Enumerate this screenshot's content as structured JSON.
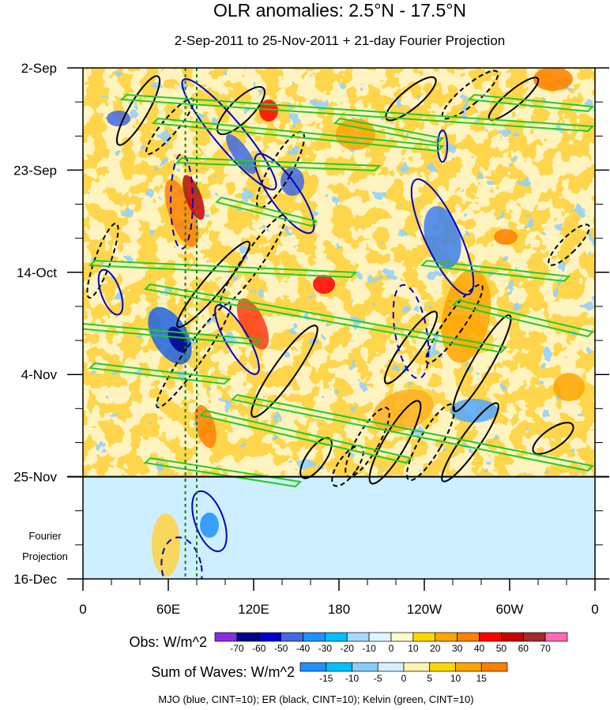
{
  "chart_data": {
    "type": "heatmap",
    "title": "OLR anomalies: 2.5°N - 17.5°N",
    "subtitle": "2-Sep-2011 to 25-Nov-2011 + 21-day Fourier Projection",
    "x_tick_labels": [
      "0",
      "60E",
      "120E",
      "180",
      "120W",
      "60W",
      "0"
    ],
    "x_tick_lons": [
      0,
      60,
      120,
      180,
      240,
      300,
      360
    ],
    "y_tick_labels": [
      "2-Sep",
      "23-Sep",
      "14-Oct",
      "4-Nov",
      "25-Nov",
      "16-Dec"
    ],
    "y_tick_days": [
      0,
      21,
      42,
      63,
      84,
      105
    ],
    "projection_label": [
      "Fourier",
      "Projection"
    ],
    "projection_start_day": 84,
    "marker_lines_lon": [
      72,
      80
    ],
    "obs_colorbar": {
      "title": "Obs: W/m^2",
      "levels": [
        "-70",
        "-60",
        "-50",
        "-40",
        "-30",
        "-20",
        "-10",
        "0",
        "10",
        "20",
        "30",
        "40",
        "50",
        "60",
        "70"
      ],
      "colors": [
        "#8a2be2",
        "#00008b",
        "#0000cd",
        "#4169e1",
        "#1e90ff",
        "#00bfff",
        "#a6d8ff",
        "#e0f6ff",
        "#fffacd",
        "#ffd700",
        "#ffa500",
        "#ff7f00",
        "#ff0000",
        "#cd0000",
        "#a52a2a",
        "#ff69b4"
      ]
    },
    "waves_colorbar": {
      "title": "Sum of Waves: W/m^2",
      "levels": [
        "-15",
        "-10",
        "-5",
        "0",
        "5",
        "10",
        "15"
      ],
      "colors": [
        "#1e90ff",
        "#00bfff",
        "#87cefa",
        "#d4efff",
        "#fff2b0",
        "#ffd700",
        "#ffa500",
        "#ff7f00"
      ]
    },
    "contour_legend": "MJO (blue, CINT=10); ER (black, CINT=10); Kelvin (green, CINT=10)",
    "wave_colors": {
      "MJO": "#0000cd",
      "ER": "#000000",
      "Kelvin": "#22cc22"
    }
  }
}
